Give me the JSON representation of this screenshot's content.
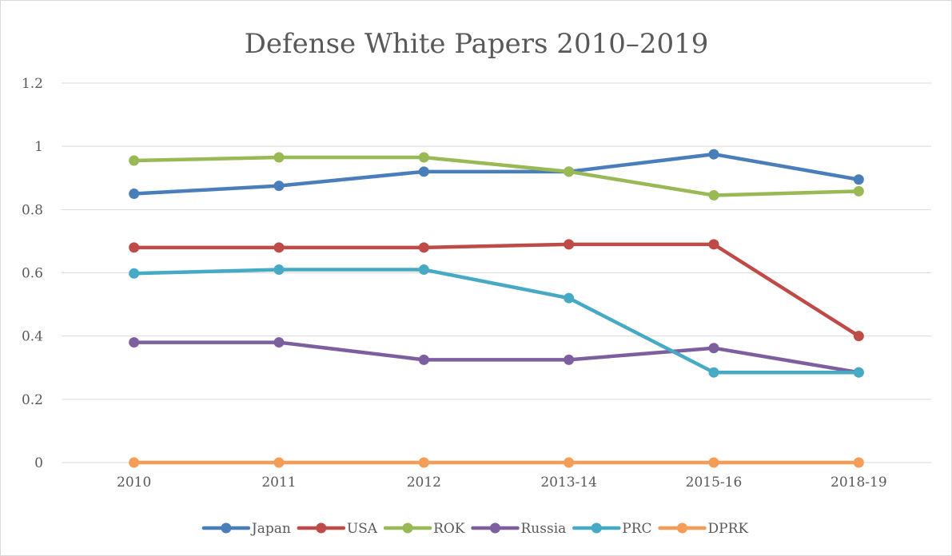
{
  "chart_data": {
    "type": "line",
    "title": "Defense White Papers 2010–2019",
    "xlabel": "",
    "ylabel": "",
    "categories": [
      "2010",
      "2011",
      "2012",
      "2013-14",
      "2015-16",
      "2018-19"
    ],
    "ylim": [
      0,
      1.2
    ],
    "yticks": [
      "0",
      "0.2",
      "0.4",
      "0.6",
      "0.8",
      "1",
      "1.2"
    ],
    "grid": true,
    "legend": "bottom",
    "series": [
      {
        "name": "Japan",
        "color": "#4a7ebb",
        "values": [
          0.85,
          0.875,
          0.92,
          0.92,
          0.975,
          0.895
        ]
      },
      {
        "name": "USA",
        "color": "#be4b48",
        "values": [
          0.68,
          0.68,
          0.68,
          0.69,
          0.69,
          0.4
        ]
      },
      {
        "name": "ROK",
        "color": "#98b954",
        "values": [
          0.955,
          0.965,
          0.965,
          0.92,
          0.845,
          0.858
        ]
      },
      {
        "name": "Russia",
        "color": "#7d5fa0",
        "values": [
          0.38,
          0.38,
          0.325,
          0.325,
          0.362,
          0.285
        ]
      },
      {
        "name": "PRC",
        "color": "#46aac5",
        "values": [
          0.598,
          0.61,
          0.61,
          0.52,
          0.285,
          0.285
        ]
      },
      {
        "name": "DPRK",
        "color": "#f59d56",
        "values": [
          0,
          0,
          0,
          0,
          0,
          0
        ]
      }
    ]
  }
}
